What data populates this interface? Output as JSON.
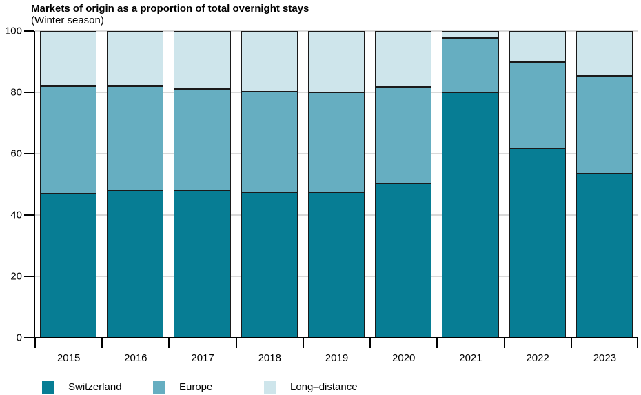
{
  "title": "Markets of origin as a proportion of total overnight stays",
  "subtitle": "(Winter season)",
  "colors": {
    "switzerland": "#077D94",
    "europe": "#66AEC1",
    "long_distance": "#CEE5EB",
    "segment_outline": "#1a1a1a",
    "gridline": "#d8d8d8",
    "axis": "#000000"
  },
  "chart_data": {
    "type": "bar",
    "stacked": true,
    "unit": "percent",
    "categories": [
      "2015",
      "2016",
      "2017",
      "2018",
      "2019",
      "2020",
      "2021",
      "2022",
      "2023"
    ],
    "series": [
      {
        "name": "Switzerland",
        "color_key": "switzerland",
        "values": [
          47.0,
          48.0,
          48.0,
          47.4,
          47.5,
          50.4,
          80.0,
          61.7,
          53.5
        ]
      },
      {
        "name": "Europe",
        "color_key": "europe",
        "values": [
          35.0,
          34.0,
          33.2,
          32.9,
          32.5,
          31.4,
          17.7,
          28.2,
          31.9
        ]
      },
      {
        "name": "Long–distance",
        "color_key": "long_distance",
        "values": [
          18.0,
          18.0,
          18.8,
          19.7,
          20.0,
          18.2,
          2.3,
          10.1,
          14.6
        ]
      }
    ],
    "title": "Markets of origin as a proportion of total overnight stays",
    "subtitle": "(Winter season)",
    "xlabel": "",
    "ylabel": "",
    "ylim": [
      0,
      100
    ],
    "yticks": [
      0,
      20,
      40,
      60,
      80,
      100
    ],
    "grid": true,
    "legend_position": "bottom"
  },
  "legend": {
    "items": [
      {
        "label": "Switzerland",
        "color_key": "switzerland"
      },
      {
        "label": "Europe",
        "color_key": "europe"
      },
      {
        "label": "Long–distance",
        "color_key": "long_distance"
      }
    ]
  }
}
